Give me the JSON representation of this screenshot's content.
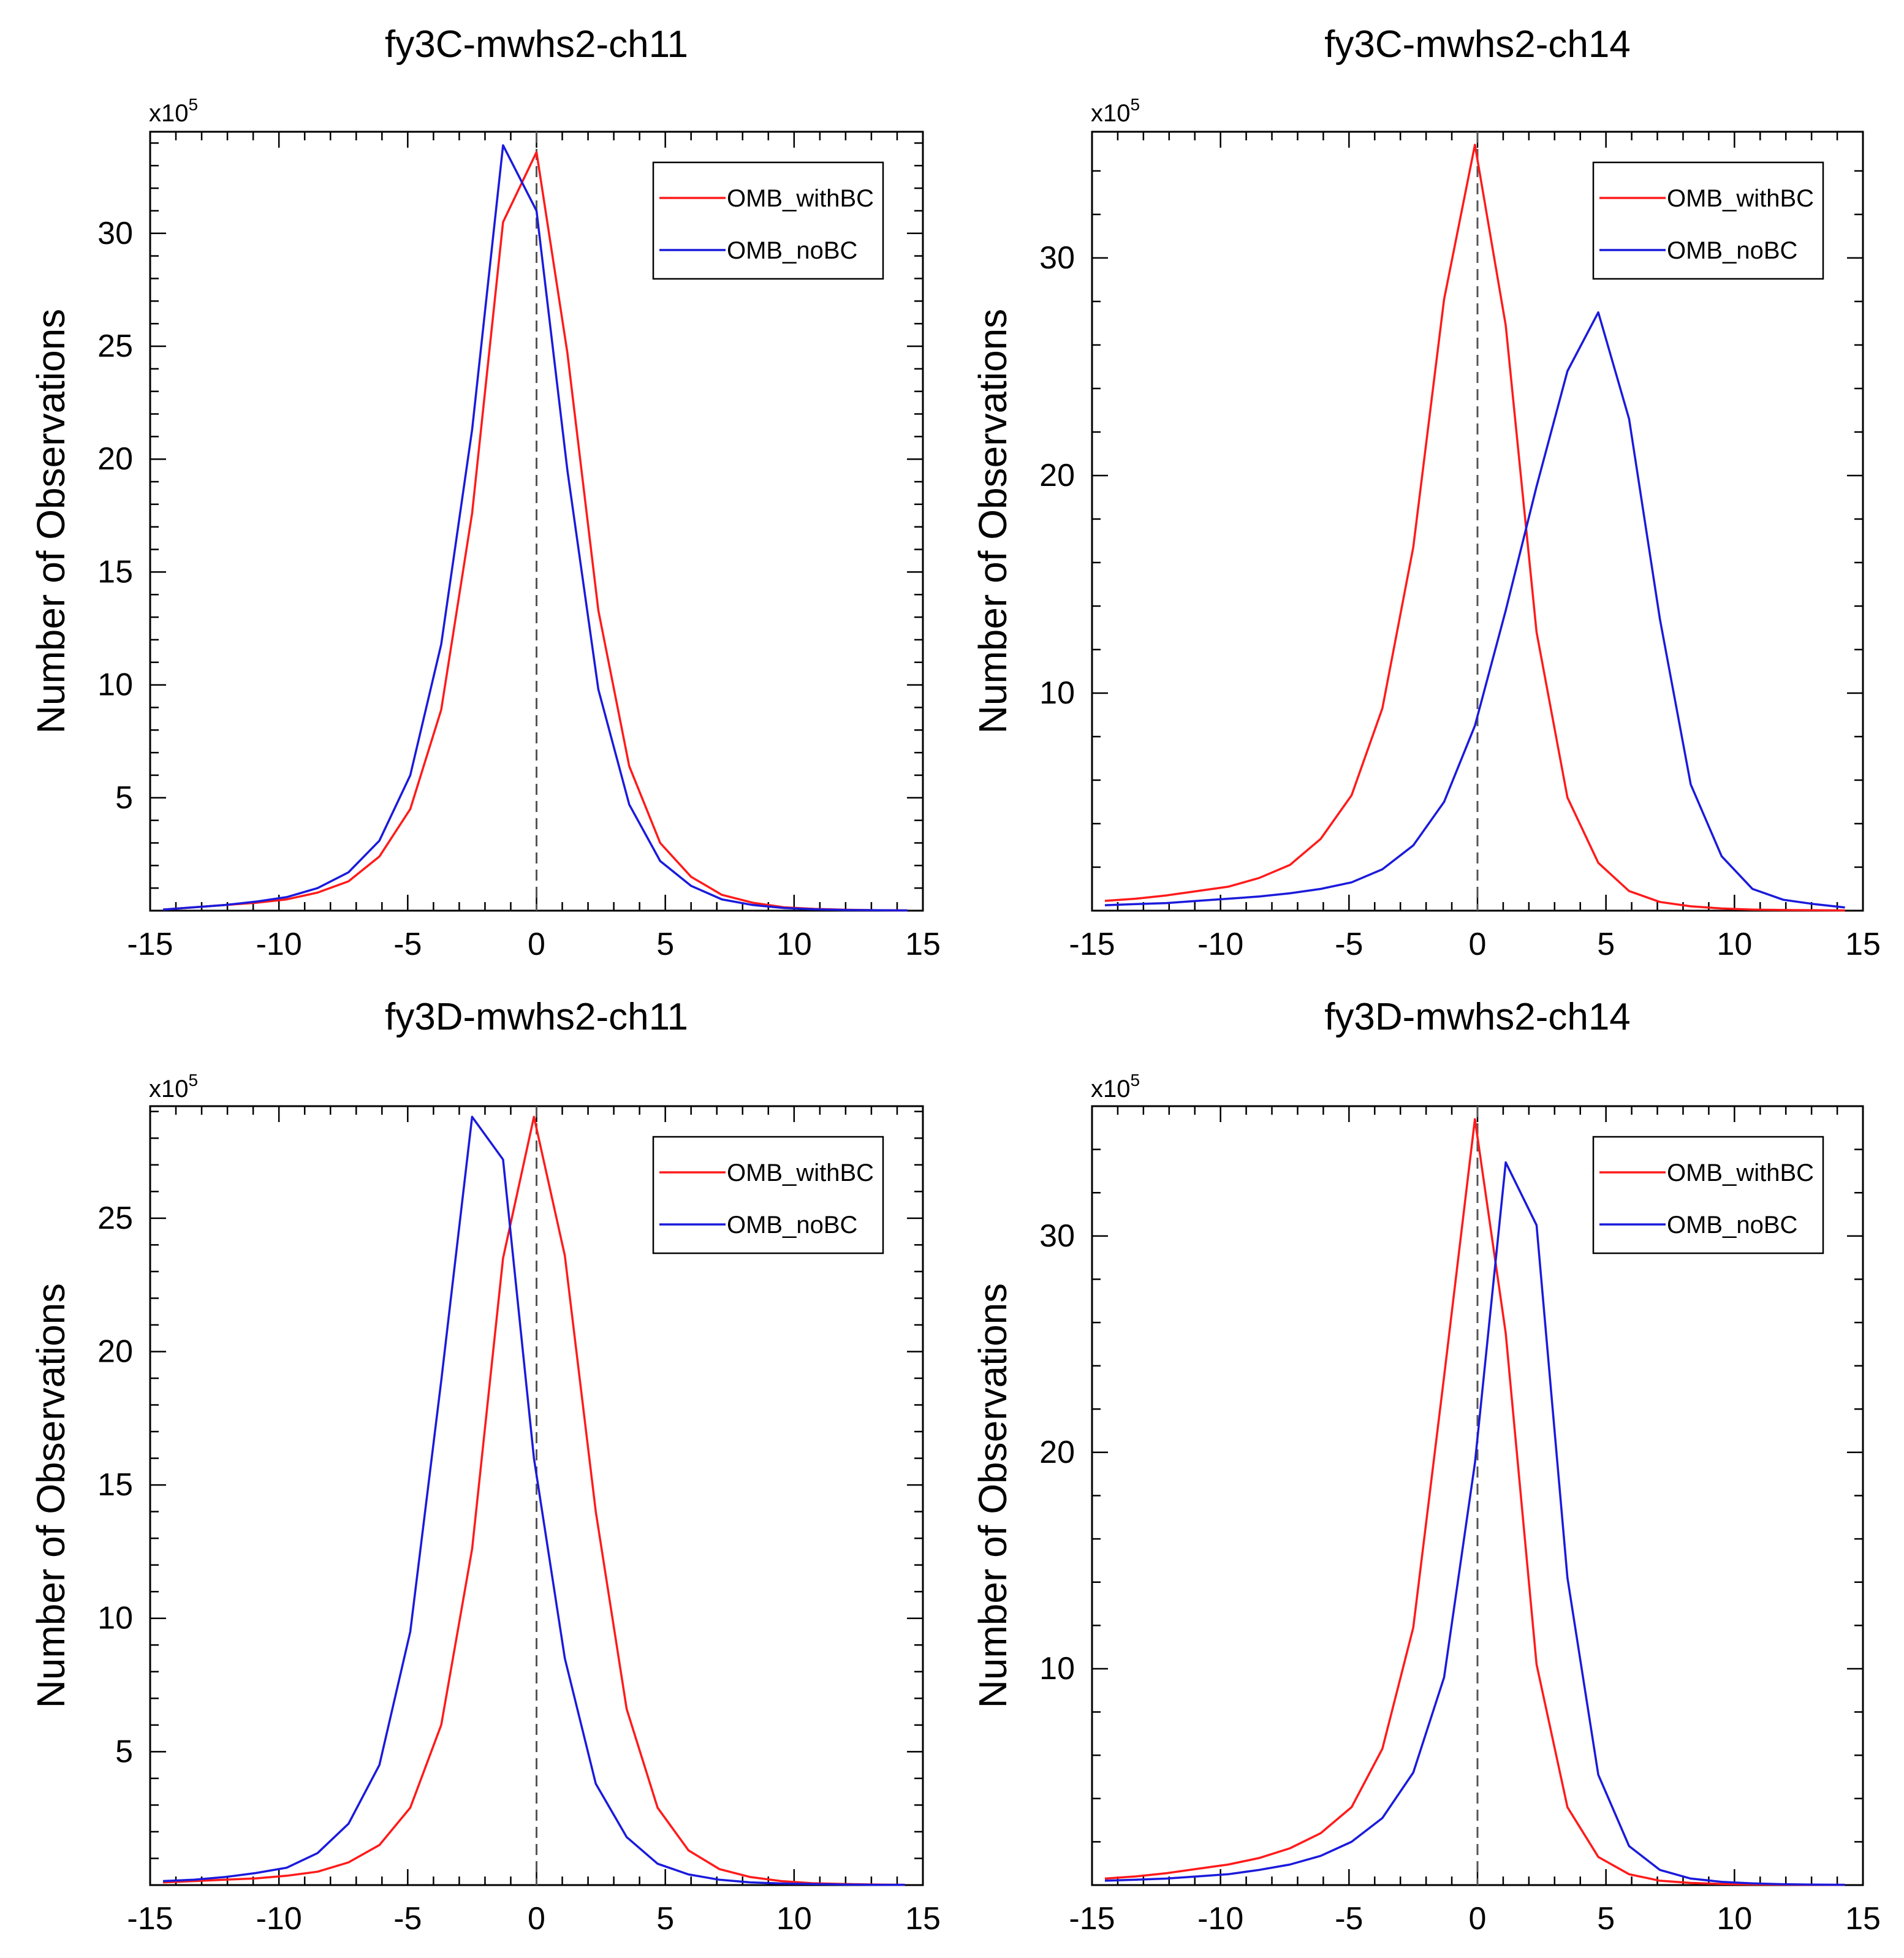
{
  "colors": {
    "withBC": "#ff1a1a",
    "noBC": "#1a1adc",
    "axis": "#000000",
    "zero_line": "#555555"
  },
  "chart_data": [
    {
      "type": "line",
      "title": "fy3C-mwhs2-ch11",
      "xlabel": "",
      "ylabel": "Number of Observations",
      "y_multiplier": "x10",
      "y_multiplier_exp": "5",
      "xlim": [
        -15,
        15
      ],
      "ylim": [
        0,
        34.5
      ],
      "xticks": [
        -15,
        -10,
        -5,
        0,
        5,
        10,
        15
      ],
      "yticks": [
        5,
        10,
        15,
        20,
        25,
        30
      ],
      "legend_position": "top-right",
      "series": [
        {
          "name": "OMB_withBC",
          "color": "#ff1a1a",
          "x": [
            -14.5,
            -13.3,
            -12.1,
            -10.9,
            -9.7,
            -8.5,
            -7.3,
            -6.1,
            -4.9,
            -3.7,
            -2.5,
            -1.3,
            0,
            1.2,
            2.4,
            3.6,
            4.8,
            6.0,
            7.2,
            8.4,
            9.6,
            10.8,
            12.0,
            13.2,
            14.4
          ],
          "y": [
            0.05,
            0.15,
            0.25,
            0.35,
            0.5,
            0.8,
            1.3,
            2.4,
            4.5,
            8.9,
            17.6,
            30.5,
            33.6,
            24.7,
            13.3,
            6.4,
            3.0,
            1.5,
            0.7,
            0.35,
            0.15,
            0.08,
            0.04,
            0.02,
            0.01
          ]
        },
        {
          "name": "OMB_noBC",
          "color": "#1a1adc",
          "x": [
            -14.5,
            -13.3,
            -12.1,
            -10.9,
            -9.7,
            -8.5,
            -7.3,
            -6.1,
            -4.9,
            -3.7,
            -2.5,
            -1.3,
            0,
            1.2,
            2.4,
            3.6,
            4.8,
            6.0,
            7.2,
            8.4,
            9.6,
            10.8,
            12.0,
            13.2,
            14.4
          ],
          "y": [
            0.05,
            0.15,
            0.25,
            0.4,
            0.6,
            1.0,
            1.7,
            3.1,
            6.0,
            11.8,
            21.3,
            33.9,
            31.0,
            19.5,
            9.8,
            4.7,
            2.2,
            1.1,
            0.5,
            0.25,
            0.12,
            0.06,
            0.03,
            0.02,
            0.01
          ]
        }
      ]
    },
    {
      "type": "line",
      "title": "fy3C-mwhs2-ch14",
      "xlabel": "",
      "ylabel": "Number of Observations",
      "y_multiplier": "x10",
      "y_multiplier_exp": "5",
      "xlim": [
        -15,
        15
      ],
      "ylim": [
        0,
        35.8
      ],
      "xticks": [
        -15,
        -10,
        -5,
        0,
        5,
        10,
        15
      ],
      "yticks": [
        10,
        20,
        30
      ],
      "legend_position": "top-right",
      "series": [
        {
          "name": "OMB_withBC",
          "color": "#ff1a1a",
          "x": [
            -14.5,
            -13.3,
            -12.1,
            -10.9,
            -9.7,
            -8.5,
            -7.3,
            -6.1,
            -4.9,
            -3.7,
            -2.5,
            -1.3,
            -0.1,
            1.1,
            2.3,
            3.5,
            4.7,
            5.9,
            7.1,
            8.3,
            9.5,
            10.7,
            11.9,
            13.1,
            14.3
          ],
          "y": [
            0.45,
            0.55,
            0.7,
            0.9,
            1.1,
            1.5,
            2.1,
            3.3,
            5.3,
            9.3,
            16.7,
            28.1,
            35.2,
            26.9,
            12.8,
            5.2,
            2.2,
            0.9,
            0.4,
            0.2,
            0.1,
            0.05,
            0.03,
            0.02,
            0.01
          ]
        },
        {
          "name": "OMB_noBC",
          "color": "#1a1adc",
          "x": [
            -14.5,
            -13.3,
            -12.1,
            -10.9,
            -9.7,
            -8.5,
            -7.3,
            -6.1,
            -4.9,
            -3.7,
            -2.5,
            -1.3,
            -0.1,
            1.1,
            2.3,
            3.5,
            4.7,
            5.9,
            7.1,
            8.3,
            9.5,
            10.7,
            11.9,
            13.1,
            14.3
          ],
          "y": [
            0.25,
            0.3,
            0.35,
            0.45,
            0.55,
            0.65,
            0.8,
            1.0,
            1.3,
            1.9,
            3.0,
            5.0,
            8.5,
            13.8,
            19.5,
            24.8,
            27.5,
            22.6,
            13.4,
            5.8,
            2.5,
            1.0,
            0.5,
            0.3,
            0.15
          ]
        }
      ]
    },
    {
      "type": "line",
      "title": "fy3D-mwhs2-ch11",
      "xlabel": "",
      "ylabel": "Number of Observations",
      "y_multiplier": "x10",
      "y_multiplier_exp": "5",
      "xlim": [
        -15,
        15
      ],
      "ylim": [
        0,
        29.2
      ],
      "xticks": [
        -15,
        -10,
        -5,
        0,
        5,
        10,
        15
      ],
      "yticks": [
        5,
        10,
        15,
        20,
        25
      ],
      "legend_position": "top-right",
      "series": [
        {
          "name": "OMB_withBC",
          "color": "#ff1a1a",
          "x": [
            -14.5,
            -13.3,
            -12.1,
            -10.9,
            -9.7,
            -8.5,
            -7.3,
            -6.1,
            -4.9,
            -3.7,
            -2.5,
            -1.3,
            -0.1,
            1.1,
            2.3,
            3.5,
            4.7,
            5.9,
            7.1,
            8.3,
            9.5,
            10.7,
            11.9,
            13.1,
            14.3
          ],
          "y": [
            0.1,
            0.15,
            0.2,
            0.25,
            0.35,
            0.5,
            0.85,
            1.5,
            2.9,
            6.0,
            12.6,
            23.5,
            28.8,
            23.6,
            14.0,
            6.6,
            2.9,
            1.3,
            0.6,
            0.3,
            0.15,
            0.07,
            0.04,
            0.02,
            0.01
          ]
        },
        {
          "name": "OMB_noBC",
          "color": "#1a1adc",
          "x": [
            -14.5,
            -13.3,
            -12.1,
            -10.9,
            -9.7,
            -8.5,
            -7.3,
            -6.1,
            -4.9,
            -3.7,
            -2.5,
            -1.3,
            -0.1,
            1.1,
            2.3,
            3.5,
            4.7,
            5.9,
            7.1,
            8.3,
            9.5,
            10.7,
            11.9,
            13.1,
            14.3
          ],
          "y": [
            0.15,
            0.2,
            0.3,
            0.45,
            0.65,
            1.2,
            2.3,
            4.5,
            9.5,
            18.9,
            28.8,
            27.2,
            16.0,
            8.5,
            3.8,
            1.8,
            0.8,
            0.4,
            0.2,
            0.1,
            0.06,
            0.04,
            0.02,
            0.01,
            0.01
          ]
        }
      ]
    },
    {
      "type": "line",
      "title": "fy3D-mwhs2-ch14",
      "xlabel": "",
      "ylabel": "Number of Observations",
      "y_multiplier": "x10",
      "y_multiplier_exp": "5",
      "xlim": [
        -15,
        15
      ],
      "ylim": [
        0,
        36.0
      ],
      "xticks": [
        -15,
        -10,
        -5,
        0,
        5,
        10,
        15
      ],
      "yticks": [
        10,
        20,
        30
      ],
      "legend_position": "top-right",
      "series": [
        {
          "name": "OMB_withBC",
          "color": "#ff1a1a",
          "x": [
            -14.5,
            -13.3,
            -12.1,
            -10.9,
            -9.7,
            -8.5,
            -7.3,
            -6.1,
            -4.9,
            -3.7,
            -2.5,
            -1.3,
            -0.1,
            1.1,
            2.3,
            3.5,
            4.7,
            5.9,
            7.1,
            8.3,
            9.5,
            10.7,
            11.9,
            13.1,
            14.3
          ],
          "y": [
            0.3,
            0.4,
            0.55,
            0.75,
            0.95,
            1.25,
            1.7,
            2.4,
            3.6,
            6.3,
            11.9,
            23.5,
            35.4,
            25.5,
            10.2,
            3.6,
            1.3,
            0.5,
            0.2,
            0.1,
            0.05,
            0.03,
            0.02,
            0.01,
            0.01
          ]
        },
        {
          "name": "OMB_noBC",
          "color": "#1a1adc",
          "x": [
            -14.5,
            -13.3,
            -12.1,
            -10.9,
            -9.7,
            -8.5,
            -7.3,
            -6.1,
            -4.9,
            -3.7,
            -2.5,
            -1.3,
            -0.1,
            1.1,
            2.3,
            3.5,
            4.7,
            5.9,
            7.1,
            8.3,
            9.5,
            10.7,
            11.9,
            13.1,
            14.3
          ],
          "y": [
            0.2,
            0.25,
            0.3,
            0.4,
            0.5,
            0.7,
            0.95,
            1.35,
            2.0,
            3.1,
            5.2,
            9.6,
            19.5,
            33.4,
            30.5,
            14.2,
            5.1,
            1.8,
            0.7,
            0.3,
            0.15,
            0.08,
            0.04,
            0.02,
            0.01
          ]
        }
      ]
    }
  ]
}
